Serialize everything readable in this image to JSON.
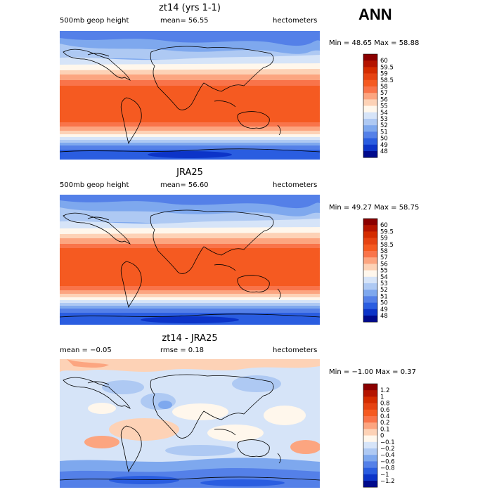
{
  "season": "ANN",
  "panels": [
    {
      "title": "zt14 (yrs 1-1)",
      "variable": "500mb geop height",
      "stat1": "mean=  56.55",
      "stat2": "",
      "units": "hectometers",
      "minmax": "Min =  48.65 Max =  58.88",
      "colorbar": {
        "labels": [
          "60",
          "59.5",
          "59",
          "58.5",
          "58",
          "57",
          "56",
          "55",
          "54",
          "53",
          "52",
          "51",
          "50",
          "49",
          "48"
        ],
        "colors": [
          "#8b0000",
          "#b41400",
          "#d42c00",
          "#e64312",
          "#f55a21",
          "#f9744a",
          "#fca580",
          "#fdd2b6",
          "#fff7ec",
          "#d6e4f8",
          "#aec9f3",
          "#7ea8ee",
          "#5480e8",
          "#2a5de0",
          "#0c34c8",
          "#000a8c"
        ]
      }
    },
    {
      "title": "JRA25",
      "variable": "500mb geop height",
      "stat1": "mean=  56.60",
      "stat2": "",
      "units": "hectometers",
      "minmax": "Min =  49.27 Max =  58.75",
      "colorbar": {
        "labels": [
          "60",
          "59.5",
          "59",
          "58.5",
          "58",
          "57",
          "56",
          "55",
          "54",
          "53",
          "52",
          "51",
          "50",
          "49",
          "48"
        ],
        "colors": [
          "#8b0000",
          "#b41400",
          "#d42c00",
          "#e64312",
          "#f55a21",
          "#f9744a",
          "#fca580",
          "#fdd2b6",
          "#fff7ec",
          "#d6e4f8",
          "#aec9f3",
          "#7ea8ee",
          "#5480e8",
          "#2a5de0",
          "#0c34c8",
          "#000a8c"
        ]
      }
    },
    {
      "title": "zt14 - JRA25",
      "variable": "",
      "stat1": "mean =  −0.05",
      "stat2": "rmse =   0.18",
      "units": "hectometers",
      "minmax": "Min =  −1.00 Max =   0.37",
      "colorbar": {
        "labels": [
          "1.2",
          "1",
          "0.8",
          "0.6",
          "0.4",
          "0.2",
          "0.1",
          "0",
          "−0.1",
          "−0.2",
          "−0.4",
          "−0.6",
          "−0.8",
          "−1",
          "−1.2"
        ],
        "colors": [
          "#8b0000",
          "#b41400",
          "#d42c00",
          "#e64312",
          "#f55a21",
          "#f9744a",
          "#fca580",
          "#fdd2b6",
          "#fff7ec",
          "#d6e4f8",
          "#aec9f3",
          "#7ea8ee",
          "#5480e8",
          "#2a5de0",
          "#0c34c8",
          "#000a8c"
        ]
      }
    }
  ]
}
